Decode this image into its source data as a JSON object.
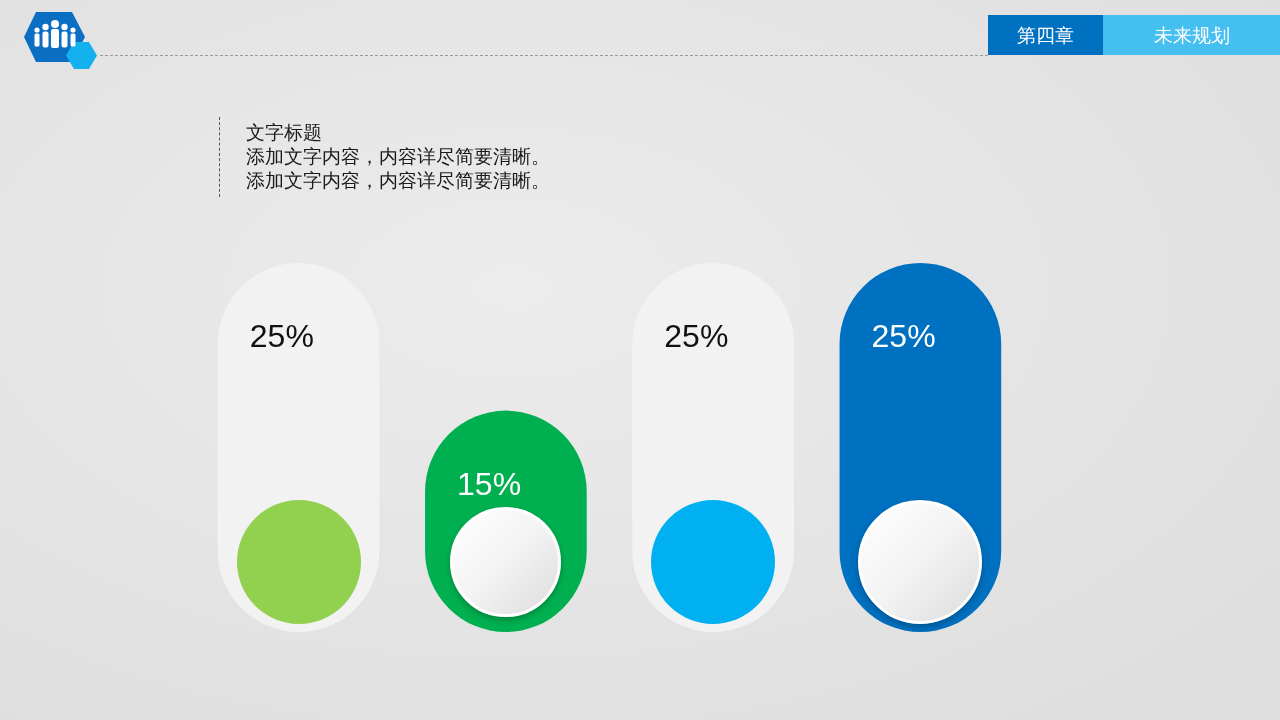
{
  "chart_data": {
    "type": "bar",
    "title": "文字标题",
    "annotations": [
      "第四章",
      "未来规划",
      "添加文字内容，内容详尽简要清晰。",
      "添加文字内容，内容详尽简要清晰。"
    ],
    "categories": [
      null,
      null,
      null,
      null
    ],
    "values": [
      25,
      15,
      25,
      25
    ],
    "colors": [
      "#f2f2f2",
      "#00b050",
      "#f2f2f2",
      "#0070c0"
    ],
    "value_labels": [
      "25%",
      "15%",
      "25%",
      "25%"
    ],
    "tick_labels": false
  }
}
